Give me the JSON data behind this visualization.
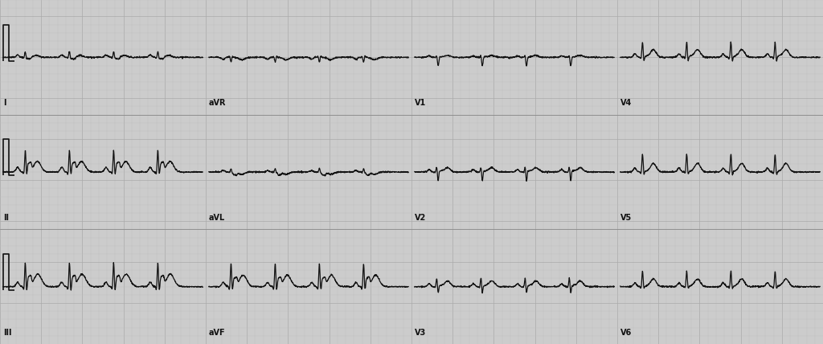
{
  "bg_color": "#cccccc",
  "grid_minor_color": "#bbbbbb",
  "grid_major_color": "#aaaaaa",
  "line_color": "#111111",
  "line_width": 0.9,
  "fig_width": 10.24,
  "fig_height": 4.28,
  "dpi": 100,
  "label_fontsize": 7,
  "lead_layout": [
    [
      "I",
      "aVR",
      "V1",
      "V4"
    ],
    [
      "II",
      "aVL",
      "V2",
      "V5"
    ],
    [
      "III",
      "aVF",
      "V3",
      "V6"
    ]
  ],
  "n_rows": 3,
  "n_cols": 4,
  "beats_per_lead": 4
}
